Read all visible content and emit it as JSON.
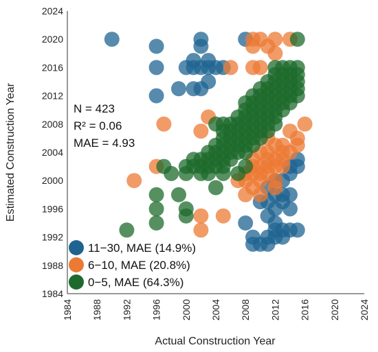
{
  "chart_data": {
    "type": "scatter",
    "xlabel": "Actual Construction Year",
    "ylabel": "Estimated Construction Year",
    "xlim": [
      1984,
      2024
    ],
    "ylim": [
      1984,
      2024
    ],
    "xticks": [
      1984,
      1988,
      1992,
      1996,
      2000,
      2004,
      2008,
      2012,
      2016,
      2020,
      2024
    ],
    "yticks": [
      1984,
      1988,
      1992,
      1996,
      2000,
      2004,
      2008,
      2012,
      2016,
      2020,
      2024
    ],
    "grid": false,
    "legend_position": "bottom-left",
    "stats": [
      {
        "label": "N = 423"
      },
      {
        "label": "R² = 0.06"
      },
      {
        "label": "MAE = 4.93"
      }
    ],
    "series": [
      {
        "name": "11−30, MAE (14.9%)",
        "color": "#1f6491",
        "points": [
          [
            1990,
            2020
          ],
          [
            1996,
            2019
          ],
          [
            2002,
            2020
          ],
          [
            2002,
            2019
          ],
          [
            2008,
            2020
          ],
          [
            1996,
            2016
          ],
          [
            2000,
            2016
          ],
          [
            2001,
            2016
          ],
          [
            2002,
            2016
          ],
          [
            2003,
            2016
          ],
          [
            2004,
            2016
          ],
          [
            2005,
            2016
          ],
          [
            2001,
            2017
          ],
          [
            2003,
            2017
          ],
          [
            1999,
            2013
          ],
          [
            2001,
            2013
          ],
          [
            2002,
            2013
          ],
          [
            2003,
            2014
          ],
          [
            1996,
            2012
          ],
          [
            2008,
            1994
          ],
          [
            2009,
            1992
          ],
          [
            2009,
            1991
          ],
          [
            2010,
            1991
          ],
          [
            2011,
            1991
          ],
          [
            2011,
            1992
          ],
          [
            2010,
            1997
          ],
          [
            2011,
            1995
          ],
          [
            2012,
            1994
          ],
          [
            2012,
            1993
          ],
          [
            2013,
            1993
          ],
          [
            2014,
            1993
          ],
          [
            2015,
            1993
          ],
          [
            2011,
            1999
          ],
          [
            2012,
            1998
          ],
          [
            2013,
            1997
          ],
          [
            2014,
            1996
          ],
          [
            2012,
            2000
          ],
          [
            2013,
            2000
          ],
          [
            2014,
            2001
          ],
          [
            2015,
            2003
          ],
          [
            2014,
            2002
          ],
          [
            2015,
            2002
          ],
          [
            2013,
            1998
          ],
          [
            2014,
            1998
          ],
          [
            2012,
            1996
          ],
          [
            2011,
            1997
          ],
          [
            2013,
            1992
          ],
          [
            2012,
            1992
          ]
        ]
      },
      {
        "name": "6−10, MAE (20.8%)",
        "color": "#ec7a34",
        "points": [
          [
            2009,
            2020
          ],
          [
            2010,
            2020
          ],
          [
            2012,
            2020
          ],
          [
            2014,
            2020
          ],
          [
            2009,
            2019
          ],
          [
            2011,
            2019
          ],
          [
            2012,
            2018
          ],
          [
            2006,
            2016
          ],
          [
            2009,
            2016
          ],
          [
            2010,
            2016
          ],
          [
            2003,
            2009
          ],
          [
            1997,
            2008
          ],
          [
            2002,
            2007
          ],
          [
            2016,
            2008
          ],
          [
            2014,
            2007
          ],
          [
            2015,
            2006
          ],
          [
            2013,
            2005
          ],
          [
            2014,
            2004
          ],
          [
            2015,
            2005
          ],
          [
            2010,
            2004
          ],
          [
            2011,
            2004
          ],
          [
            2012,
            2003
          ],
          [
            2013,
            2003
          ],
          [
            2009,
            2002
          ],
          [
            2010,
            2002
          ],
          [
            2011,
            2002
          ],
          [
            2012,
            2002
          ],
          [
            2009,
            2001
          ],
          [
            2010,
            2001
          ],
          [
            2011,
            2001
          ],
          [
            2012,
            2000
          ],
          [
            2008,
            2000
          ],
          [
            2009,
            1999
          ],
          [
            2008,
            1998
          ],
          [
            2010,
            1998
          ],
          [
            1996,
            2002
          ],
          [
            1993,
            2000
          ],
          [
            2002,
            1995
          ],
          [
            2002,
            1993
          ],
          [
            2005,
            1995
          ],
          [
            2007,
            2000
          ],
          [
            2008,
            2001
          ],
          [
            2011,
            2003
          ],
          [
            2013,
            2002
          ],
          [
            2009,
            2003
          ],
          [
            2010,
            2000
          ],
          [
            2012,
            1999
          ],
          [
            2013,
            2004
          ],
          [
            2012,
            2005
          ],
          [
            2011,
            2006
          ]
        ]
      },
      {
        "name": "0−5, MAE (64.3%)",
        "color": "#1d6b2c",
        "points": [
          [
            2015,
            2020
          ],
          [
            2012,
            2016
          ],
          [
            2013,
            2016
          ],
          [
            2014,
            2016
          ],
          [
            2015,
            2016
          ],
          [
            2012,
            2015
          ],
          [
            2013,
            2015
          ],
          [
            2014,
            2015
          ],
          [
            2015,
            2015
          ],
          [
            2011,
            2014
          ],
          [
            2012,
            2014
          ],
          [
            2013,
            2014
          ],
          [
            2014,
            2014
          ],
          [
            2015,
            2014
          ],
          [
            2010,
            2013
          ],
          [
            2011,
            2013
          ],
          [
            2012,
            2013
          ],
          [
            2013,
            2013
          ],
          [
            2014,
            2013
          ],
          [
            2015,
            2013
          ],
          [
            2009,
            2012
          ],
          [
            2010,
            2012
          ],
          [
            2011,
            2012
          ],
          [
            2012,
            2012
          ],
          [
            2013,
            2012
          ],
          [
            2014,
            2012
          ],
          [
            2015,
            2012
          ],
          [
            2008,
            2011
          ],
          [
            2009,
            2011
          ],
          [
            2010,
            2011
          ],
          [
            2011,
            2011
          ],
          [
            2012,
            2011
          ],
          [
            2013,
            2011
          ],
          [
            2014,
            2011
          ],
          [
            2008,
            2010
          ],
          [
            2009,
            2010
          ],
          [
            2010,
            2010
          ],
          [
            2011,
            2010
          ],
          [
            2012,
            2010
          ],
          [
            2013,
            2010
          ],
          [
            2007,
            2009
          ],
          [
            2008,
            2009
          ],
          [
            2009,
            2009
          ],
          [
            2010,
            2009
          ],
          [
            2011,
            2009
          ],
          [
            2012,
            2009
          ],
          [
            2004,
            2008
          ],
          [
            2005,
            2008
          ],
          [
            2006,
            2008
          ],
          [
            2007,
            2008
          ],
          [
            2008,
            2008
          ],
          [
            2009,
            2008
          ],
          [
            2010,
            2008
          ],
          [
            2011,
            2008
          ],
          [
            2012,
            2008
          ],
          [
            2005,
            2007
          ],
          [
            2006,
            2007
          ],
          [
            2007,
            2007
          ],
          [
            2008,
            2007
          ],
          [
            2009,
            2007
          ],
          [
            2010,
            2007
          ],
          [
            2011,
            2007
          ],
          [
            2005,
            2006
          ],
          [
            2006,
            2006
          ],
          [
            2007,
            2006
          ],
          [
            2008,
            2006
          ],
          [
            2009,
            2006
          ],
          [
            2010,
            2006
          ],
          [
            2004,
            2005
          ],
          [
            2005,
            2005
          ],
          [
            2006,
            2005
          ],
          [
            2007,
            2005
          ],
          [
            2008,
            2005
          ],
          [
            2009,
            2005
          ],
          [
            2003,
            2004
          ],
          [
            2004,
            2004
          ],
          [
            2005,
            2004
          ],
          [
            2006,
            2004
          ],
          [
            2007,
            2004
          ],
          [
            2008,
            2004
          ],
          [
            2001,
            2003
          ],
          [
            2002,
            2003
          ],
          [
            2003,
            2003
          ],
          [
            2004,
            2003
          ],
          [
            2005,
            2003
          ],
          [
            2006,
            2003
          ],
          [
            2000,
            2002
          ],
          [
            2001,
            2002
          ],
          [
            2002,
            2002
          ],
          [
            2003,
            2002
          ],
          [
            2004,
            2002
          ],
          [
            2005,
            2002
          ],
          [
            2008,
            2002
          ],
          [
            2000,
            2001
          ],
          [
            2002,
            2001
          ],
          [
            2003,
            2001
          ],
          [
            2005,
            2001
          ],
          [
            2007,
            2001
          ],
          [
            1997,
            2002
          ],
          [
            1998,
            2001
          ],
          [
            1996,
            1998
          ],
          [
            1996,
            1996
          ],
          [
            1996,
            1994
          ],
          [
            1992,
            1993
          ],
          [
            1999,
            1998
          ],
          [
            2000,
            1996
          ],
          [
            2000,
            1995
          ],
          [
            2004,
            1999
          ]
        ]
      }
    ]
  }
}
